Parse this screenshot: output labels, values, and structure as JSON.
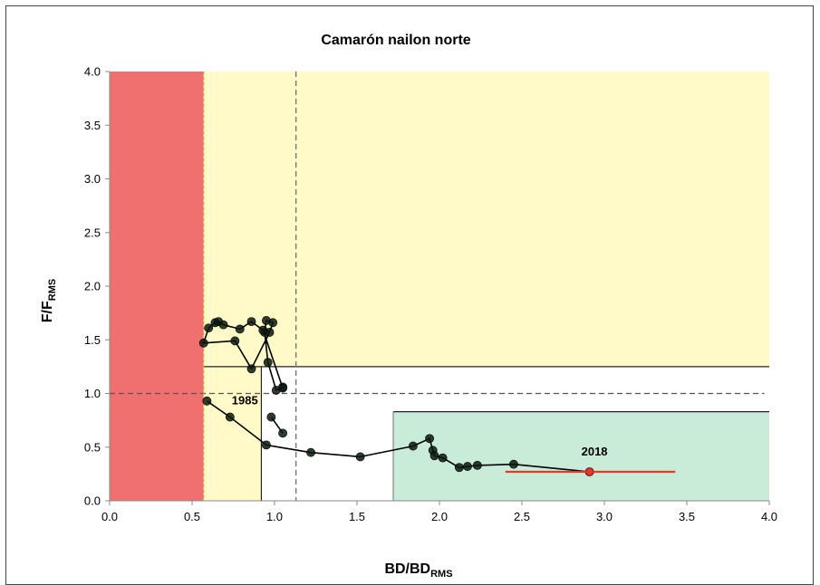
{
  "chart_data": {
    "type": "scatter",
    "title": "Camarón nailon norte",
    "xlabel": {
      "main": "BD/BD",
      "sub": "RMS"
    },
    "ylabel": {
      "main": "F/F",
      "sub": "RMS"
    },
    "xlim": [
      0,
      4
    ],
    "ylim": [
      0,
      4
    ],
    "xticks": [
      "0.0",
      "0.5",
      "1.0",
      "1.5",
      "2.0",
      "2.5",
      "3.0",
      "3.5",
      "4.0"
    ],
    "yticks": [
      "0.0",
      "0.5",
      "1.0",
      "1.5",
      "2.0",
      "2.5",
      "3.0",
      "3.5",
      "4.0"
    ],
    "grid": false,
    "colors": {
      "collapse_zone": "#f07070",
      "overexploited_zone": "#fffac8",
      "full_exploitation_zone": "#c8ecd8",
      "trajectory": "#000000",
      "point_fill": "#0a1a0e",
      "final_point": "#e8382a"
    },
    "zones": {
      "collapse": {
        "x": [
          0,
          0.57
        ],
        "y": [
          0,
          4
        ]
      },
      "overexploited_high_F": {
        "x": [
          0.57,
          4
        ],
        "y": [
          1.25,
          4
        ]
      },
      "overexploited_low_B": {
        "x": [
          0.57,
          0.92
        ],
        "y": [
          0,
          1.25
        ]
      },
      "full_exploitation": {
        "x": [
          1.72,
          4
        ],
        "y": [
          0,
          0.83
        ]
      }
    },
    "reference_lines": {
      "horizontal_dashed_y": 1.0,
      "vertical_dashed_x": 1.13,
      "vertical_dotted_x": 0.57,
      "overexploitation_line_y": 1.25,
      "full_exploitation_line_y": 0.83
    },
    "series": [
      {
        "points": [
          {
            "x": 0.59,
            "y": 0.93
          },
          {
            "x": 0.73,
            "y": 0.78
          },
          {
            "x": 0.95,
            "y": 0.52
          },
          {
            "x": 1.22,
            "y": 0.45
          },
          {
            "x": 1.52,
            "y": 0.41
          },
          {
            "x": 1.84,
            "y": 0.51
          },
          {
            "x": 1.94,
            "y": 0.58
          },
          {
            "x": 1.96,
            "y": 0.47
          },
          {
            "x": 1.97,
            "y": 0.42
          },
          {
            "x": 2.02,
            "y": 0.4
          },
          {
            "x": 2.12,
            "y": 0.31
          },
          {
            "x": 2.17,
            "y": 0.32
          },
          {
            "x": 2.23,
            "y": 0.33
          },
          {
            "x": 2.45,
            "y": 0.34
          },
          {
            "x": 2.91,
            "y": 0.27
          }
        ]
      },
      {
        "points": [
          {
            "x": 1.05,
            "y": 0.63
          },
          {
            "x": 0.98,
            "y": 0.78
          }
        ]
      },
      {
        "points": [
          {
            "x": 1.05,
            "y": 1.06
          },
          {
            "x": 1.01,
            "y": 1.03
          },
          {
            "x": 0.96,
            "y": 1.29
          },
          {
            "x": 0.94,
            "y": 1.57
          },
          {
            "x": 0.95,
            "y": 1.68
          },
          {
            "x": 0.99,
            "y": 1.66
          },
          {
            "x": 0.97,
            "y": 1.57
          },
          {
            "x": 0.86,
            "y": 1.23
          },
          {
            "x": 0.76,
            "y": 1.49
          },
          {
            "x": 0.57,
            "y": 1.47
          },
          {
            "x": 0.6,
            "y": 1.61
          },
          {
            "x": 0.64,
            "y": 1.66
          },
          {
            "x": 0.66,
            "y": 1.67
          },
          {
            "x": 0.69,
            "y": 1.64
          },
          {
            "x": 0.79,
            "y": 1.6
          },
          {
            "x": 0.86,
            "y": 1.67
          },
          {
            "x": 0.93,
            "y": 1.59
          },
          {
            "x": 1.05,
            "y": 1.05
          }
        ]
      }
    ],
    "final_point": {
      "x": 2.91,
      "y": 0.27,
      "ci_x": [
        2.4,
        3.43
      ],
      "ci_y": [
        0.24,
        0.3
      ]
    },
    "annotations": [
      {
        "text": "1985",
        "x": 0.82,
        "y": 0.9
      },
      {
        "text": "2018",
        "x": 2.94,
        "y": 0.42
      }
    ]
  }
}
